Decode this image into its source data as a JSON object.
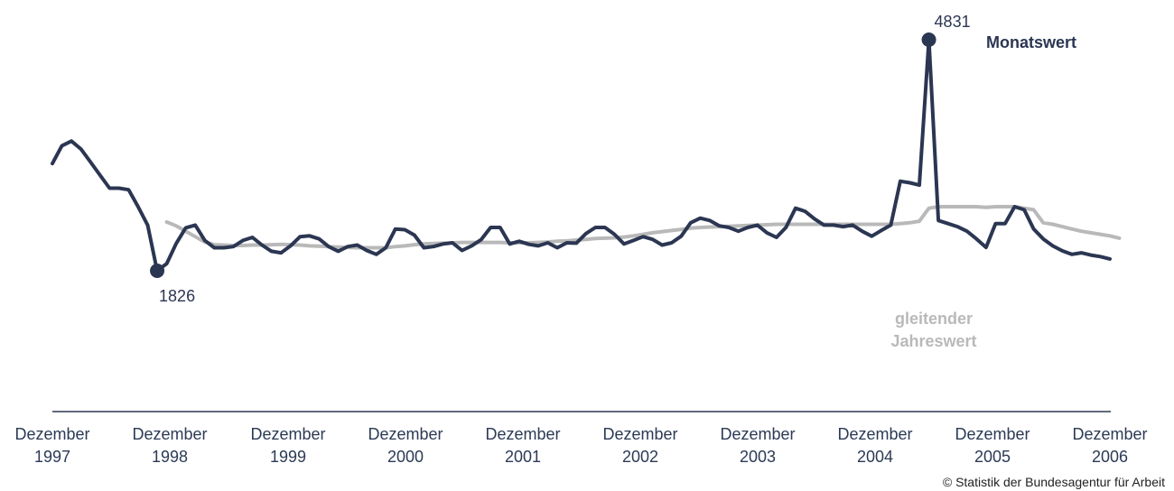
{
  "chart_data": {
    "type": "line",
    "x_tick_labels": [
      {
        "line1": "Dezember",
        "line2": "1997"
      },
      {
        "line1": "Dezember",
        "line2": "1998"
      },
      {
        "line1": "Dezember",
        "line2": "1999"
      },
      {
        "line1": "Dezember",
        "line2": "2000"
      },
      {
        "line1": "Dezember",
        "line2": "2001"
      },
      {
        "line1": "Dezember",
        "line2": "2002"
      },
      {
        "line1": "Dezember",
        "line2": "2003"
      },
      {
        "line1": "Dezember",
        "line2": "2004"
      },
      {
        "line1": "Dezember",
        "line2": "2005"
      },
      {
        "line1": "Dezember",
        "line2": "2006"
      }
    ],
    "ylim": [
      1000,
      5000
    ],
    "series": [
      {
        "name": "Monatswert",
        "legend_line1": "Monatswert",
        "legend_line2": "",
        "color": "#2b3652",
        "values": [
          3220,
          3451,
          3513,
          3410,
          3240,
          3070,
          2900,
          2900,
          2880,
          2660,
          2420,
          1826,
          1919,
          2180,
          2385,
          2420,
          2220,
          2125,
          2125,
          2140,
          2220,
          2260,
          2160,
          2080,
          2060,
          2150,
          2270,
          2280,
          2240,
          2140,
          2080,
          2140,
          2160,
          2090,
          2040,
          2125,
          2370,
          2360,
          2290,
          2125,
          2140,
          2175,
          2190,
          2090,
          2150,
          2230,
          2390,
          2390,
          2175,
          2210,
          2170,
          2150,
          2190,
          2125,
          2190,
          2185,
          2310,
          2390,
          2390,
          2300,
          2175,
          2220,
          2270,
          2235,
          2160,
          2190,
          2275,
          2450,
          2510,
          2480,
          2410,
          2390,
          2340,
          2390,
          2420,
          2320,
          2260,
          2390,
          2640,
          2600,
          2500,
          2420,
          2420,
          2400,
          2420,
          2340,
          2275,
          2350,
          2420,
          2990,
          2970,
          2940,
          4831,
          2480,
          2440,
          2400,
          2340,
          2240,
          2130,
          2440,
          2440,
          2660,
          2620,
          2370,
          2240,
          2150,
          2085,
          2040,
          2060,
          2030,
          2010,
          1980
        ]
      },
      {
        "name": "gleitender Jahreswert",
        "legend_line1": "gleitender",
        "legend_line2": "Jahreswert",
        "color": "#b9b9b9",
        "values": [
          null,
          null,
          null,
          null,
          null,
          null,
          null,
          null,
          null,
          null,
          null,
          null,
          2460,
          2410,
          2340,
          2270,
          2200,
          2165,
          2160,
          2155,
          2155,
          2160,
          2160,
          2165,
          2170,
          2165,
          2160,
          2150,
          2145,
          2140,
          2135,
          2130,
          2125,
          2125,
          2125,
          2125,
          2140,
          2150,
          2165,
          2175,
          2180,
          2185,
          2190,
          2195,
          2195,
          2195,
          2195,
          2195,
          2190,
          2190,
          2190,
          2195,
          2200,
          2210,
          2215,
          2225,
          2235,
          2245,
          2250,
          2255,
          2265,
          2280,
          2300,
          2320,
          2335,
          2350,
          2365,
          2380,
          2390,
          2395,
          2400,
          2405,
          2410,
          2415,
          2420,
          2425,
          2430,
          2430,
          2430,
          2430,
          2430,
          2430,
          2430,
          2430,
          2430,
          2430,
          2430,
          2430,
          2430,
          2440,
          2450,
          2470,
          2640,
          2660,
          2660,
          2660,
          2660,
          2660,
          2650,
          2660,
          2660,
          2660,
          2640,
          2620,
          2450,
          2430,
          2400,
          2370,
          2340,
          2320,
          2300,
          2280,
          2250
        ]
      }
    ],
    "annotations": [
      {
        "label": "1826",
        "series": 0,
        "index": 11,
        "position": "below"
      },
      {
        "label": "4831",
        "series": 0,
        "index": 92,
        "position": "above"
      }
    ]
  },
  "footer": {
    "credit": "© Statistik der Bundesagentur für Arbeit"
  }
}
